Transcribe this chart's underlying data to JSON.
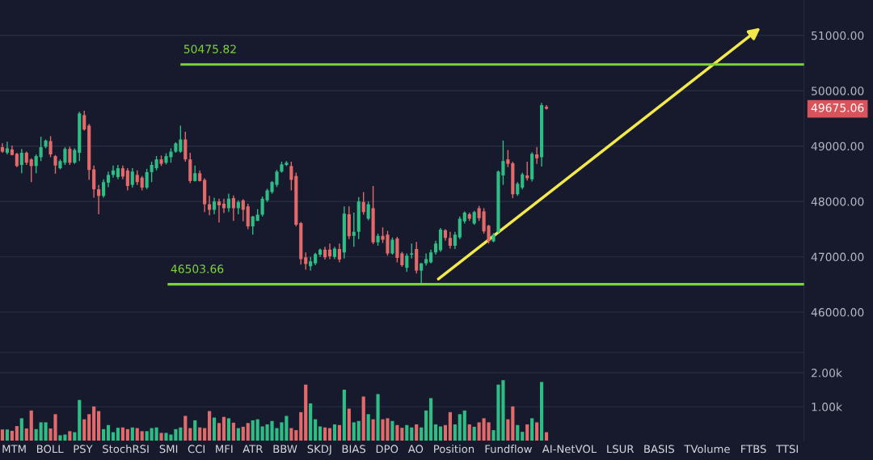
{
  "chart_data": [
    {
      "type": "candlestick",
      "categories": [
        null,
        null,
        null,
        null,
        null,
        null,
        null,
        null,
        null,
        null,
        null,
        null,
        null,
        null,
        null,
        null,
        null,
        null,
        null,
        null,
        null,
        null,
        null,
        null,
        null,
        null,
        null,
        null,
        null,
        null,
        null,
        null,
        null,
        null,
        null,
        null,
        null,
        null,
        null,
        null,
        null,
        null,
        null,
        null,
        null,
        null,
        null,
        null,
        null,
        null,
        null,
        null,
        null,
        null,
        null,
        null,
        null,
        null,
        null,
        null,
        null,
        null,
        null,
        null,
        null,
        null,
        null,
        null,
        null,
        null,
        null,
        null,
        null,
        null,
        null,
        null,
        null,
        null,
        null,
        null,
        null,
        null,
        null,
        null,
        null,
        null,
        null,
        null,
        null,
        null,
        null,
        null,
        null,
        null,
        null,
        null,
        null,
        null,
        null,
        null,
        null,
        null,
        null,
        null,
        null,
        null,
        null,
        null,
        null,
        null,
        null,
        null,
        null,
        null,
        null,
        null,
        null,
        null,
        null,
        null,
        null,
        null,
        null,
        null,
        null,
        null,
        null,
        null,
        null,
        null,
        null,
        null,
        null,
        null,
        null,
        null,
        null,
        null,
        null,
        null,
        null,
        null,
        null,
        null,
        null,
        null,
        null,
        null,
        null,
        null,
        null,
        null,
        null,
        null,
        null,
        null,
        null,
        null,
        null,
        null,
        null,
        null,
        null,
        null,
        null,
        null,
        null
      ],
      "ohlc": [
        [
          48980,
          49050,
          48880,
          48900
        ],
        [
          48880,
          49080,
          48850,
          48960
        ],
        [
          48940,
          49010,
          48830,
          48840
        ],
        [
          48860,
          48880,
          48620,
          48640
        ],
        [
          48660,
          48950,
          48510,
          48880
        ],
        [
          48880,
          48900,
          48660,
          48700
        ],
        [
          48760,
          48780,
          48350,
          48640
        ],
        [
          48640,
          48850,
          48510,
          48820
        ],
        [
          48800,
          49170,
          48730,
          48980
        ],
        [
          48990,
          49120,
          48960,
          49100
        ],
        [
          49090,
          49180,
          48800,
          48850
        ],
        [
          48820,
          48840,
          48500,
          48650
        ],
        [
          48600,
          48760,
          48580,
          48730
        ],
        [
          48700,
          48980,
          48660,
          48950
        ],
        [
          48950,
          48990,
          48660,
          48700
        ],
        [
          48700,
          48960,
          48680,
          48930
        ],
        [
          48880,
          49620,
          48730,
          49590
        ],
        [
          49560,
          49640,
          49280,
          49300
        ],
        [
          49370,
          49400,
          48390,
          48570
        ],
        [
          48580,
          48650,
          48070,
          48220
        ],
        [
          48220,
          48300,
          47770,
          48100
        ],
        [
          48100,
          48400,
          48070,
          48350
        ],
        [
          48340,
          48540,
          48260,
          48480
        ],
        [
          48480,
          48650,
          48430,
          48560
        ],
        [
          48440,
          48660,
          48400,
          48600
        ],
        [
          48600,
          48650,
          48400,
          48450
        ],
        [
          48560,
          48600,
          48200,
          48280
        ],
        [
          48300,
          48600,
          48250,
          48540
        ],
        [
          48480,
          48560,
          48300,
          48350
        ],
        [
          48430,
          48460,
          48200,
          48250
        ],
        [
          48250,
          48590,
          48220,
          48530
        ],
        [
          48530,
          48720,
          48350,
          48660
        ],
        [
          48600,
          48820,
          48560,
          48760
        ],
        [
          48760,
          48830,
          48640,
          48680
        ],
        [
          48700,
          48870,
          48670,
          48820
        ],
        [
          48800,
          48960,
          48700,
          48900
        ],
        [
          48900,
          49070,
          48880,
          49050
        ],
        [
          48900,
          49370,
          48880,
          49120
        ],
        [
          49120,
          49260,
          48720,
          48760
        ],
        [
          48760,
          48880,
          48330,
          48370
        ],
        [
          48370,
          48650,
          48360,
          48510
        ],
        [
          48510,
          48560,
          48360,
          48370
        ],
        [
          48390,
          48420,
          47810,
          47950
        ],
        [
          47950,
          48100,
          47750,
          47850
        ],
        [
          47850,
          48070,
          47770,
          48000
        ],
        [
          48000,
          48050,
          47620,
          47930
        ],
        [
          47960,
          48050,
          47790,
          47880
        ],
        [
          47880,
          48140,
          47810,
          48050
        ],
        [
          48060,
          48110,
          47650,
          47880
        ],
        [
          47880,
          48020,
          47770,
          47990
        ],
        [
          48020,
          48040,
          47640,
          47850
        ],
        [
          47910,
          47960,
          47500,
          47550
        ],
        [
          47550,
          47740,
          47400,
          47730
        ],
        [
          47650,
          47860,
          47650,
          47760
        ],
        [
          47760,
          48090,
          47730,
          48050
        ],
        [
          48020,
          48230,
          47990,
          48200
        ],
        [
          48170,
          48370,
          48140,
          48350
        ],
        [
          48300,
          48570,
          48260,
          48540
        ],
        [
          48540,
          48720,
          48520,
          48670
        ],
        [
          48660,
          48730,
          48640,
          48700
        ],
        [
          48640,
          48720,
          48200,
          48390
        ],
        [
          48460,
          48520,
          47550,
          47580
        ],
        [
          47610,
          47630,
          46860,
          46960
        ],
        [
          46990,
          47080,
          46770,
          46870
        ],
        [
          46830,
          47000,
          46750,
          46920
        ],
        [
          46880,
          47070,
          46850,
          47050
        ],
        [
          47040,
          47150,
          47000,
          47130
        ],
        [
          47130,
          47180,
          46950,
          46990
        ],
        [
          47130,
          47240,
          46960,
          47010
        ],
        [
          47000,
          47180,
          46960,
          47150
        ],
        [
          47140,
          47240,
          46900,
          46950
        ],
        [
          47080,
          47910,
          46970,
          47780
        ],
        [
          47770,
          47910,
          47320,
          47370
        ],
        [
          47380,
          47800,
          47180,
          47450
        ],
        [
          47450,
          48080,
          47320,
          48000
        ],
        [
          47990,
          48170,
          47760,
          47810
        ],
        [
          47690,
          48000,
          47660,
          47950
        ],
        [
          47880,
          48280,
          47230,
          47260
        ],
        [
          47260,
          47420,
          47200,
          47380
        ],
        [
          47380,
          47530,
          47250,
          47310
        ],
        [
          47400,
          47470,
          47020,
          47060
        ],
        [
          47060,
          47350,
          47040,
          47310
        ],
        [
          47330,
          47360,
          46900,
          46980
        ],
        [
          47060,
          47090,
          46820,
          46850
        ],
        [
          46800,
          47060,
          46730,
          47020
        ],
        [
          47040,
          47240,
          46970,
          47060
        ],
        [
          47140,
          47270,
          46700,
          46750
        ],
        [
          46750,
          46890,
          46500,
          46880
        ],
        [
          46880,
          47060,
          46840,
          46960
        ],
        [
          46900,
          47130,
          46880,
          47080
        ],
        [
          47080,
          47290,
          47040,
          47240
        ],
        [
          47120,
          47520,
          47090,
          47490
        ],
        [
          47480,
          47500,
          47290,
          47340
        ],
        [
          47340,
          47450,
          47150,
          47200
        ],
        [
          47200,
          47450,
          47140,
          47400
        ],
        [
          47350,
          47730,
          47320,
          47690
        ],
        [
          47640,
          47820,
          47600,
          47800
        ],
        [
          47770,
          47800,
          47650,
          47690
        ],
        [
          47600,
          47830,
          47580,
          47810
        ],
        [
          47880,
          47920,
          47650,
          47700
        ],
        [
          47820,
          47880,
          47420,
          47460
        ],
        [
          47560,
          47580,
          47240,
          47280
        ],
        [
          47280,
          47430,
          47260,
          47400
        ],
        [
          47450,
          48560,
          47430,
          48540
        ],
        [
          48470,
          49100,
          48300,
          48730
        ],
        [
          48760,
          48930,
          48620,
          48680
        ],
        [
          48690,
          48720,
          48060,
          48130
        ],
        [
          48130,
          48350,
          48100,
          48320
        ],
        [
          48250,
          48520,
          48220,
          48490
        ],
        [
          48470,
          48720,
          48380,
          48420
        ],
        [
          48400,
          48890,
          48360,
          48860
        ],
        [
          48850,
          48980,
          48680,
          48780
        ],
        [
          48800,
          49780,
          48630,
          49740
        ],
        [
          49710,
          49740,
          49660,
          49675.06
        ],
        null,
        null,
        null,
        null,
        null,
        null,
        null,
        null,
        null,
        null,
        null,
        null,
        null,
        null,
        null,
        null,
        null,
        null,
        null,
        null,
        null,
        null,
        null,
        null,
        null,
        null,
        null,
        null,
        null,
        null,
        null,
        null,
        null,
        null,
        null,
        null,
        null,
        null,
        null,
        null,
        null,
        null,
        null,
        null,
        null,
        null,
        null,
        null,
        null,
        null,
        null,
        null,
        null
      ],
      "colors": [
        "#e36a6a",
        "#2ebd85",
        "#e36a6a",
        "#e36a6a",
        "#2ebd85",
        "#e36a6a",
        "#e36a6a",
        "#2ebd85",
        "#2ebd85",
        "#2ebd85",
        "#e36a6a",
        "#e36a6a",
        "#2ebd85",
        "#2ebd85",
        "#e36a6a",
        "#2ebd85",
        "#2ebd85",
        "#e36a6a",
        "#e36a6a",
        "#e36a6a",
        "#e36a6a",
        "#2ebd85",
        "#2ebd85",
        "#2ebd85",
        "#2ebd85",
        "#e36a6a",
        "#e36a6a",
        "#2ebd85",
        "#e36a6a",
        "#e36a6a",
        "#2ebd85",
        "#2ebd85",
        "#2ebd85",
        "#e36a6a",
        "#2ebd85",
        "#2ebd85",
        "#2ebd85",
        "#2ebd85",
        "#e36a6a",
        "#e36a6a",
        "#2ebd85",
        "#e36a6a",
        "#e36a6a",
        "#e36a6a",
        "#2ebd85",
        "#e36a6a",
        "#e36a6a",
        "#2ebd85",
        "#e36a6a",
        "#2ebd85",
        "#e36a6a",
        "#e36a6a",
        "#2ebd85",
        "#2ebd85",
        "#2ebd85",
        "#2ebd85",
        "#2ebd85",
        "#2ebd85",
        "#2ebd85",
        "#2ebd85",
        "#e36a6a",
        "#e36a6a",
        "#e36a6a",
        "#e36a6a",
        "#2ebd85",
        "#2ebd85",
        "#2ebd85",
        "#e36a6a",
        "#e36a6a",
        "#2ebd85",
        "#e36a6a",
        "#2ebd85",
        "#e36a6a",
        "#2ebd85",
        "#2ebd85",
        "#e36a6a",
        "#2ebd85",
        "#e36a6a",
        "#2ebd85",
        "#e36a6a",
        "#e36a6a",
        "#2ebd85",
        "#e36a6a",
        "#e36a6a",
        "#2ebd85",
        "#2ebd85",
        "#e36a6a",
        "#2ebd85",
        "#2ebd85",
        "#2ebd85",
        "#2ebd85",
        "#2ebd85",
        "#e36a6a",
        "#e36a6a",
        "#2ebd85",
        "#2ebd85",
        "#2ebd85",
        "#e36a6a",
        "#2ebd85",
        "#e36a6a",
        "#e36a6a",
        "#e36a6a",
        "#2ebd85",
        "#2ebd85",
        "#2ebd85",
        "#e36a6a",
        "#e36a6a",
        "#2ebd85",
        "#2ebd85",
        "#e36a6a",
        "#2ebd85",
        "#e36a6a",
        "#2ebd85",
        "#e36a6a",
        null,
        null,
        null,
        null,
        null,
        null,
        null,
        null,
        null,
        null,
        null,
        null,
        null,
        null,
        null,
        null,
        null,
        null,
        null,
        null,
        null,
        null,
        null,
        null,
        null,
        null,
        null,
        null,
        null,
        null,
        null,
        null,
        null,
        null,
        null,
        null,
        null,
        null,
        null,
        null,
        null,
        null,
        null,
        null,
        null,
        null,
        null,
        null,
        null,
        null,
        null,
        null,
        null
      ],
      "ylim": [
        45290,
        51640
      ],
      "yticks": [
        {
          "value": 46000,
          "label": "46000.00"
        },
        {
          "value": 47000,
          "label": "47000.00"
        },
        {
          "value": 48000,
          "label": "48000.00"
        },
        {
          "value": 49000,
          "label": "49000.00"
        },
        {
          "value": 50000,
          "label": "50000.00"
        },
        {
          "value": 51000,
          "label": "51000.00"
        }
      ],
      "tick_labels": "y",
      "grid": "y",
      "ref_lines": [
        {
          "axis": "y",
          "value": 50475.82,
          "label": "50475.82",
          "color": "#7ed33b"
        },
        {
          "axis": "y",
          "value": 46503.66,
          "label": "46503.66",
          "color": "#7ed33b"
        }
      ],
      "annotations": [
        "49675.06"
      ]
    },
    {
      "type": "bar",
      "categories": [
        null,
        null,
        null,
        null,
        null,
        null,
        null,
        null,
        null,
        null,
        null,
        null,
        null,
        null,
        null,
        null,
        null,
        null,
        null,
        null,
        null,
        null,
        null,
        null,
        null,
        null,
        null,
        null,
        null,
        null,
        null,
        null,
        null,
        null,
        null,
        null,
        null,
        null,
        null,
        null,
        null,
        null,
        null,
        null,
        null,
        null,
        null,
        null,
        null,
        null,
        null,
        null,
        null,
        null,
        null,
        null,
        null,
        null,
        null,
        null,
        null,
        null,
        null,
        null,
        null,
        null,
        null,
        null,
        null,
        null,
        null,
        null,
        null,
        null,
        null,
        null,
        null,
        null,
        null,
        null,
        null,
        null,
        null,
        null,
        null,
        null,
        null,
        null,
        null,
        null,
        null,
        null,
        null,
        null,
        null,
        null,
        null,
        null,
        null,
        null,
        null,
        null,
        null,
        null,
        null,
        null,
        null,
        null,
        null,
        null,
        null,
        null,
        null,
        null,
        null,
        null,
        null,
        null,
        null,
        null,
        null,
        null,
        null,
        null,
        null,
        null,
        null,
        null,
        null,
        null,
        null,
        null,
        null,
        null,
        null,
        null,
        null,
        null,
        null,
        null,
        null,
        null,
        null,
        null,
        null,
        null,
        null,
        null,
        null,
        null,
        null,
        null,
        null,
        null,
        null,
        null,
        null,
        null,
        null,
        null,
        null,
        null,
        null,
        null,
        null,
        null,
        null
      ],
      "values": [
        330,
        330,
        290,
        430,
        660,
        360,
        890,
        340,
        540,
        540,
        360,
        780,
        160,
        180,
        280,
        250,
        1200,
        630,
        780,
        1010,
        870,
        340,
        460,
        250,
        380,
        390,
        340,
        390,
        370,
        280,
        280,
        370,
        390,
        230,
        230,
        180,
        340,
        390,
        730,
        370,
        600,
        390,
        370,
        870,
        680,
        520,
        700,
        660,
        530,
        370,
        410,
        520,
        600,
        630,
        420,
        480,
        580,
        370,
        540,
        730,
        370,
        310,
        840,
        1650,
        1100,
        630,
        420,
        390,
        370,
        480,
        460,
        1500,
        940,
        540,
        580,
        1300,
        780,
        630,
        1370,
        630,
        660,
        580,
        460,
        380,
        460,
        390,
        480,
        390,
        890,
        1250,
        480,
        420,
        460,
        840,
        480,
        780,
        890,
        480,
        410,
        540,
        660,
        540,
        310,
        1650,
        1780,
        630,
        1010,
        460,
        260,
        480,
        660,
        540,
        1730,
        250,
        null,
        null,
        null,
        null,
        null,
        null,
        null,
        null,
        null,
        null,
        null,
        null,
        null,
        null,
        null,
        null,
        null,
        null,
        null,
        null,
        null,
        null,
        null,
        null,
        null,
        null,
        null,
        null,
        null,
        null,
        null,
        null,
        null,
        null,
        null,
        null,
        null,
        null,
        null,
        null,
        null,
        null,
        null,
        null,
        null,
        null,
        null,
        null,
        null,
        null,
        null,
        null,
        null
      ],
      "colors": [
        "#e36a6a",
        "#2ebd85",
        "#e36a6a",
        "#e36a6a",
        "#2ebd85",
        "#e36a6a",
        "#e36a6a",
        "#2ebd85",
        "#2ebd85",
        "#2ebd85",
        "#e36a6a",
        "#e36a6a",
        "#2ebd85",
        "#2ebd85",
        "#e36a6a",
        "#2ebd85",
        "#2ebd85",
        "#e36a6a",
        "#e36a6a",
        "#e36a6a",
        "#e36a6a",
        "#2ebd85",
        "#2ebd85",
        "#2ebd85",
        "#2ebd85",
        "#e36a6a",
        "#e36a6a",
        "#2ebd85",
        "#e36a6a",
        "#e36a6a",
        "#2ebd85",
        "#2ebd85",
        "#2ebd85",
        "#e36a6a",
        "#2ebd85",
        "#2ebd85",
        "#2ebd85",
        "#2ebd85",
        "#e36a6a",
        "#e36a6a",
        "#2ebd85",
        "#e36a6a",
        "#e36a6a",
        "#e36a6a",
        "#2ebd85",
        "#e36a6a",
        "#e36a6a",
        "#2ebd85",
        "#e36a6a",
        "#2ebd85",
        "#e36a6a",
        "#e36a6a",
        "#2ebd85",
        "#2ebd85",
        "#2ebd85",
        "#2ebd85",
        "#2ebd85",
        "#2ebd85",
        "#2ebd85",
        "#2ebd85",
        "#e36a6a",
        "#e36a6a",
        "#e36a6a",
        "#e36a6a",
        "#2ebd85",
        "#2ebd85",
        "#2ebd85",
        "#e36a6a",
        "#e36a6a",
        "#2ebd85",
        "#e36a6a",
        "#2ebd85",
        "#e36a6a",
        "#2ebd85",
        "#2ebd85",
        "#e36a6a",
        "#2ebd85",
        "#e36a6a",
        "#2ebd85",
        "#e36a6a",
        "#e36a6a",
        "#2ebd85",
        "#e36a6a",
        "#e36a6a",
        "#2ebd85",
        "#2ebd85",
        "#e36a6a",
        "#2ebd85",
        "#2ebd85",
        "#2ebd85",
        "#2ebd85",
        "#2ebd85",
        "#e36a6a",
        "#e36a6a",
        "#2ebd85",
        "#2ebd85",
        "#2ebd85",
        "#e36a6a",
        "#2ebd85",
        "#e36a6a",
        "#e36a6a",
        "#e36a6a",
        "#2ebd85",
        "#2ebd85",
        "#2ebd85",
        "#e36a6a",
        "#e36a6a",
        "#2ebd85",
        "#2ebd85",
        "#e36a6a",
        "#2ebd85",
        "#e36a6a",
        "#2ebd85",
        "#e36a6a",
        null,
        null,
        null,
        null,
        null,
        null,
        null,
        null,
        null,
        null,
        null,
        null,
        null,
        null,
        null,
        null,
        null,
        null,
        null,
        null,
        null,
        null,
        null,
        null,
        null,
        null,
        null,
        null,
        null,
        null,
        null,
        null,
        null,
        null,
        null,
        null,
        null,
        null,
        null,
        null,
        null,
        null,
        null,
        null,
        null,
        null,
        null,
        null,
        null,
        null,
        null,
        null,
        null
      ],
      "ylim": [
        0,
        2600
      ],
      "yticks": [
        {
          "value": 1000,
          "label": "1.00k"
        },
        {
          "value": 2000,
          "label": "2.00k"
        }
      ],
      "tick_labels": "y",
      "grid": "y",
      "annotations": [
        "MTM",
        "BOLL",
        "PSY",
        "StochRSI",
        "SMI",
        "CCI",
        "MFI",
        "ATR",
        "BBW",
        "SKDJ",
        "BIAS",
        "DPO",
        "AO",
        "Position",
        "Fundflow",
        "AI-NetVOL",
        "LSUR",
        "BASIS",
        "TVolume",
        "FTBS",
        "TTSI"
      ]
    }
  ]
}
